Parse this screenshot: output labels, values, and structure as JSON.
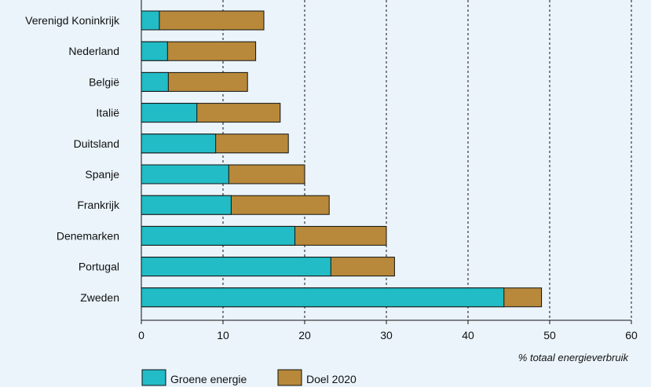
{
  "chart_data": {
    "type": "bar",
    "orientation": "horizontal",
    "stacked": true,
    "categories": [
      "Verenigd Koninkrijk",
      "Nederland",
      "België",
      "Italië",
      "Duitsland",
      "Spanje",
      "Frankrijk",
      "Denemarken",
      "Portugal",
      "Zweden"
    ],
    "series": [
      {
        "name": "Groene energie",
        "color": "#22bcc6",
        "values": [
          2.2,
          3.2,
          3.3,
          6.8,
          9.1,
          10.7,
          11.0,
          18.8,
          23.2,
          44.4
        ]
      },
      {
        "name": "Doel 2020",
        "color": "#b8893a",
        "note": "total target",
        "totals": [
          15,
          14,
          13,
          17,
          18,
          20,
          23,
          30,
          31,
          49
        ]
      }
    ],
    "xlabel": "% totaal energieverbruik",
    "xlim": [
      0,
      60
    ],
    "xticks": [
      0,
      10,
      20,
      30,
      40,
      50,
      60
    ],
    "grid": "vertical-dashed",
    "legend_position": "bottom-left"
  }
}
